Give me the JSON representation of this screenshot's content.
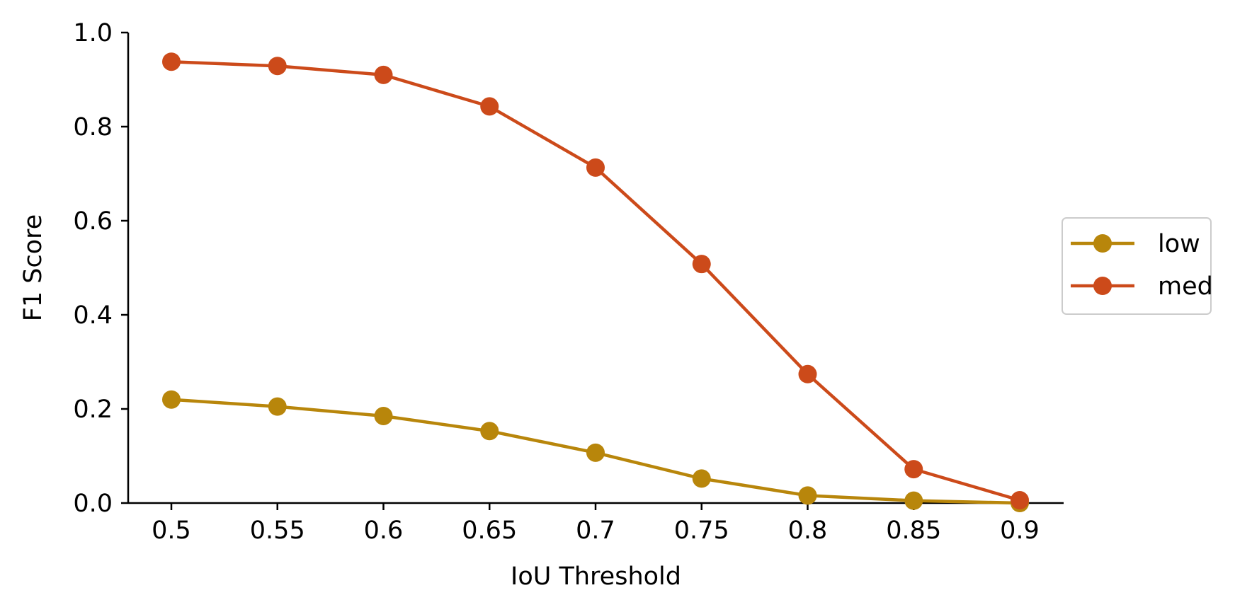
{
  "chart_data": {
    "type": "line",
    "title": "",
    "xlabel": "IoU Threshold",
    "ylabel": "F1 Score",
    "categories": [
      "0.5",
      "0.55",
      "0.6",
      "0.65",
      "0.7",
      "0.75",
      "0.8",
      "0.85",
      "0.9"
    ],
    "yticks": [
      "0.0",
      "0.2",
      "0.4",
      "0.6",
      "0.8",
      "1.0"
    ],
    "ylim": [
      0,
      1.0
    ],
    "grid": false,
    "legend_position": "center-right outside",
    "series": [
      {
        "name": "low",
        "color": "#b8860b",
        "values": [
          0.22,
          0.205,
          0.185,
          0.153,
          0.107,
          0.052,
          0.016,
          0.005,
          0.0
        ]
      },
      {
        "name": "med",
        "color": "#cc4a1a",
        "values": [
          0.938,
          0.929,
          0.91,
          0.843,
          0.713,
          0.508,
          0.274,
          0.072,
          0.006
        ]
      }
    ]
  }
}
